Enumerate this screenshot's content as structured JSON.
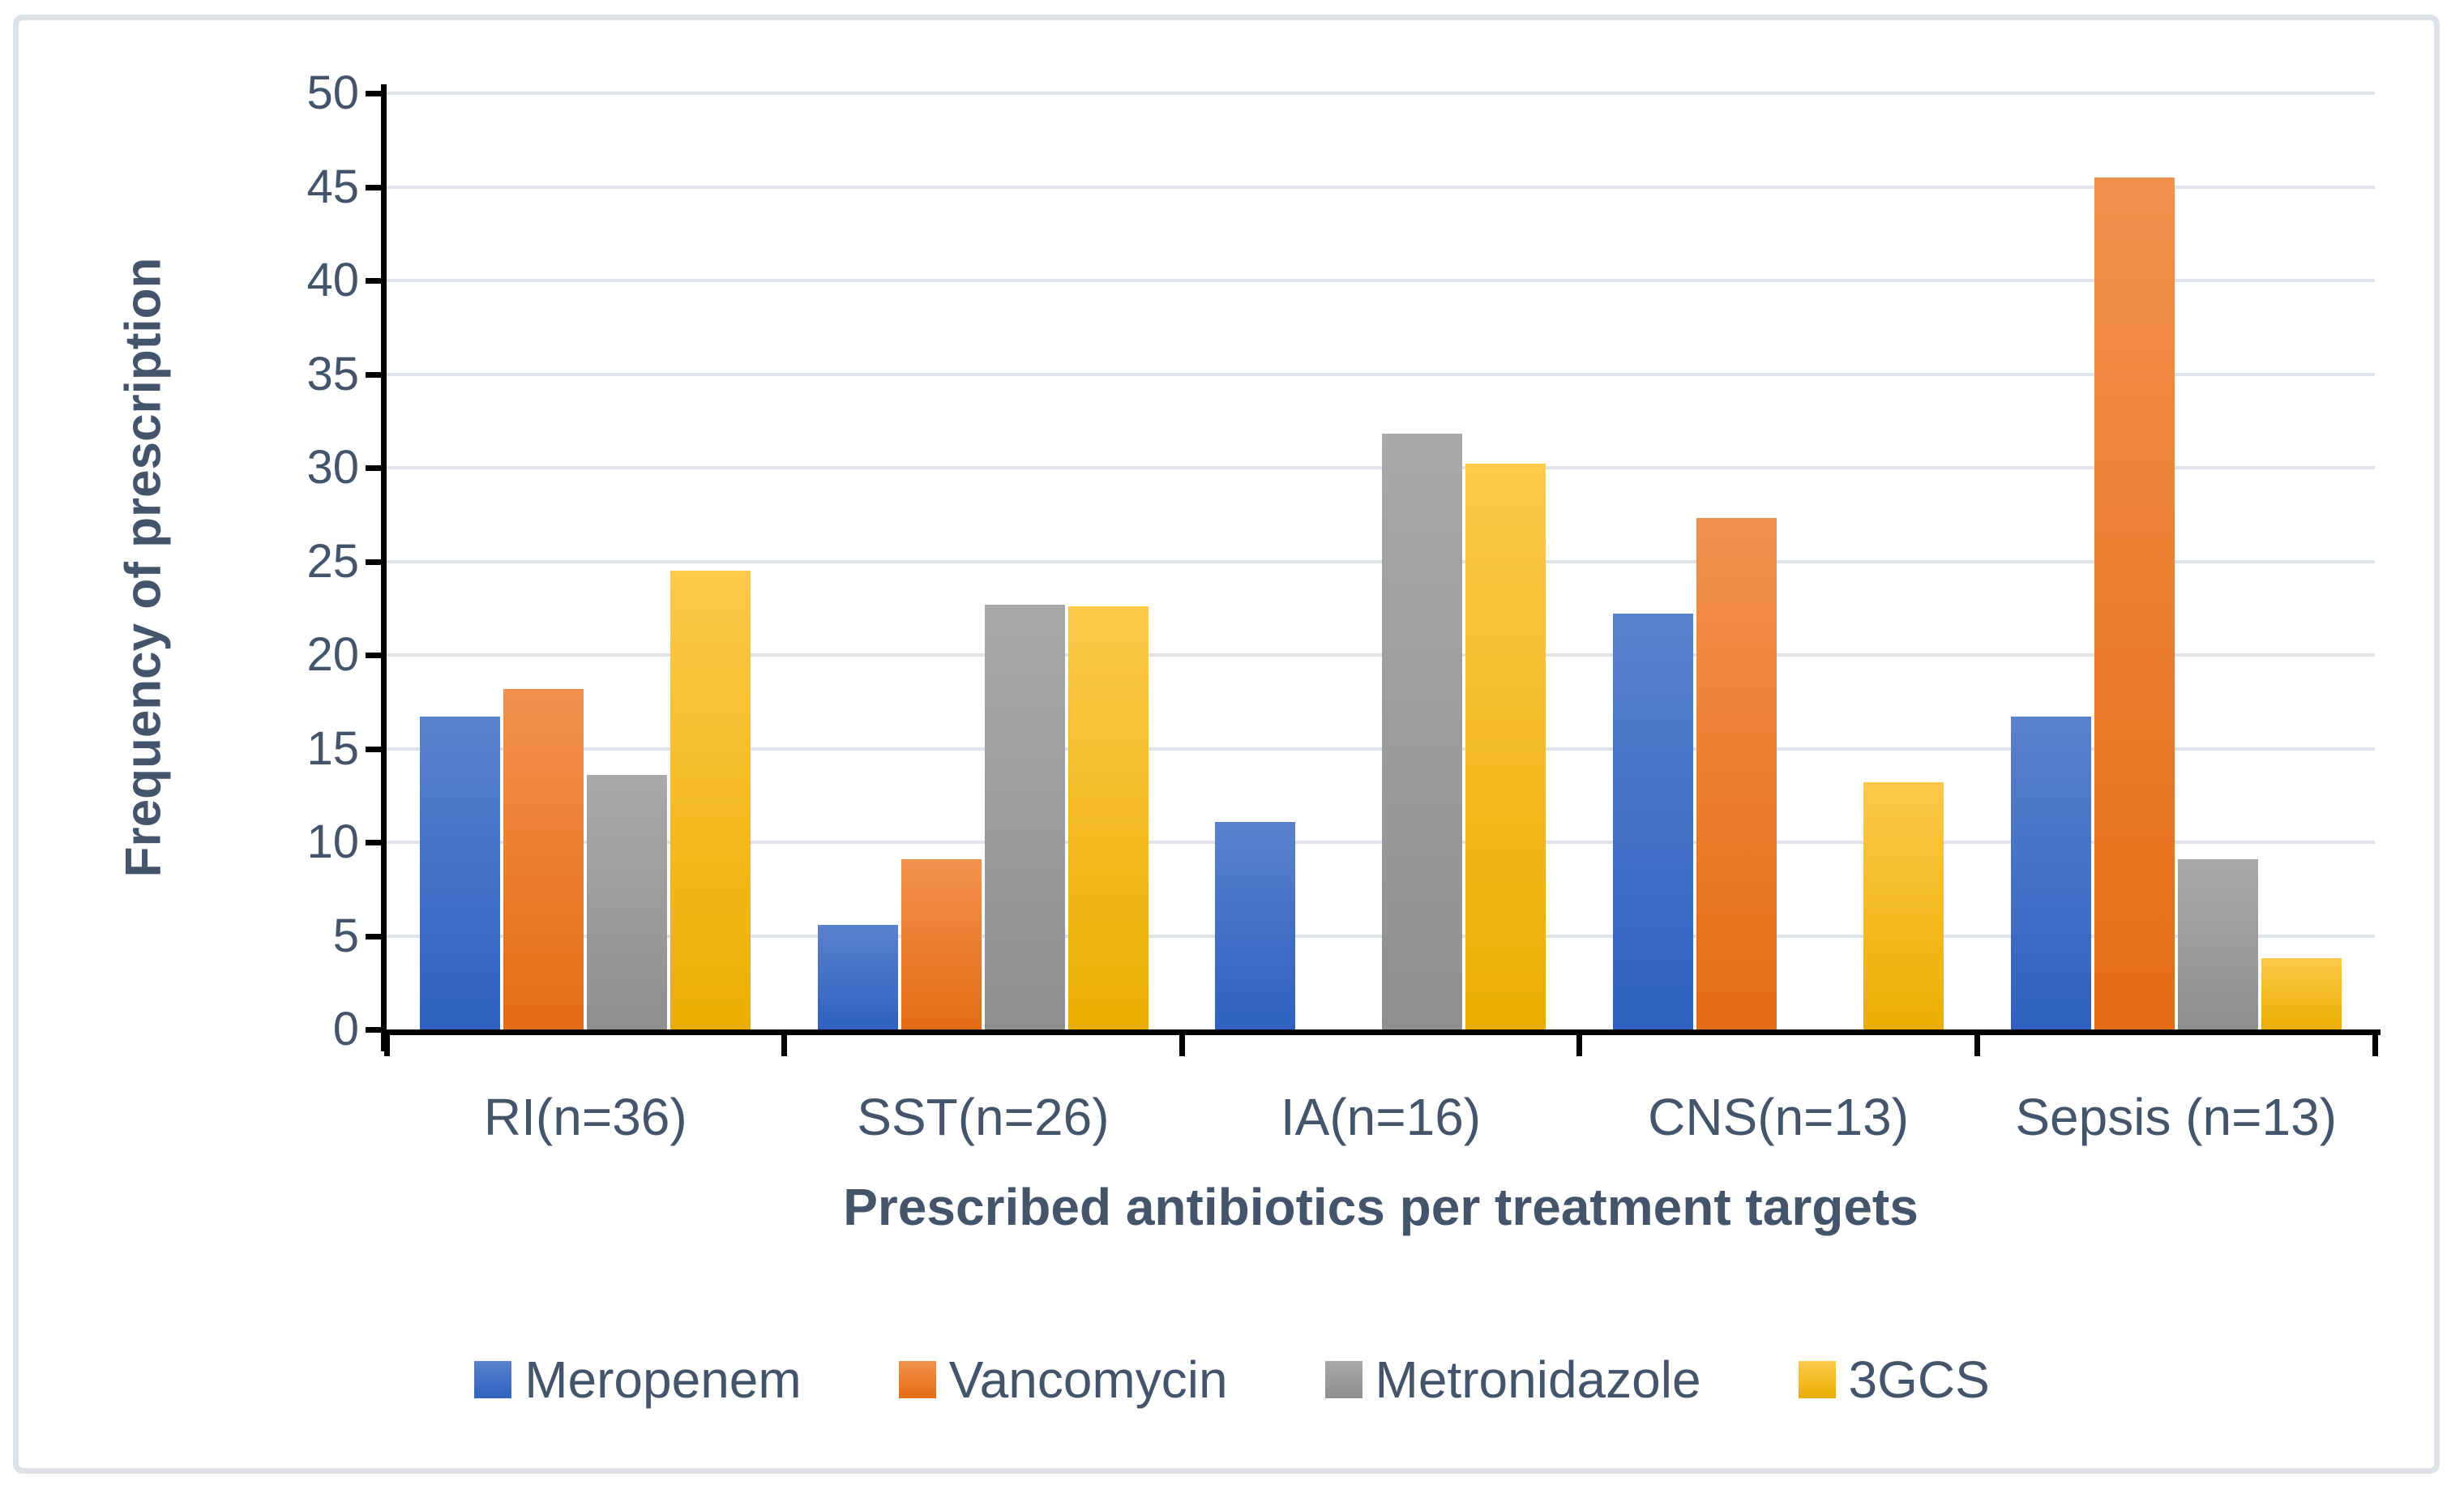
{
  "chart_data": {
    "type": "bar",
    "title": "",
    "xlabel": "Prescribed antibiotics per treatment targets",
    "ylabel": "Frequency of prescription",
    "ylim": [
      0,
      50
    ],
    "ytick_interval": 5,
    "yticks": [
      0,
      5,
      10,
      15,
      20,
      25,
      30,
      35,
      40,
      45,
      50
    ],
    "grid": true,
    "legend_position": "bottom",
    "categories": [
      "RI(n=36)",
      "SST(n=26)",
      "IA(n=16)",
      "CNS(n=13)",
      "Sepsis (n=13)"
    ],
    "series": [
      {
        "name": "Meropenem",
        "color": "#4472C4",
        "gradient": [
          "#5A81CD",
          "#2E61C1"
        ],
        "values": [
          16.7,
          5.6,
          11.1,
          22.2,
          16.7
        ]
      },
      {
        "name": "Vancomycin",
        "color": "#ED7D31",
        "gradient": [
          "#F2914D",
          "#E56C14"
        ],
        "values": [
          18.2,
          9.1,
          0,
          27.3,
          45.5
        ]
      },
      {
        "name": "Metronidazole",
        "color": "#A5A5A5",
        "gradient": [
          "#A9A9A9",
          "#8F8F8F"
        ],
        "values": [
          13.6,
          22.7,
          31.8,
          0,
          9.1
        ]
      },
      {
        "name": "3GCS",
        "color": "#FFC000",
        "gradient": [
          "#FFC94B",
          "#EAAE00"
        ],
        "values": [
          24.5,
          22.6,
          30.2,
          13.2,
          3.8
        ]
      }
    ]
  },
  "colors": {
    "text": "#44546A",
    "axis": "#000000",
    "gridline": "#DFE3EA",
    "frame_border": "#DEE1E8",
    "background": "#FFFFFF"
  }
}
